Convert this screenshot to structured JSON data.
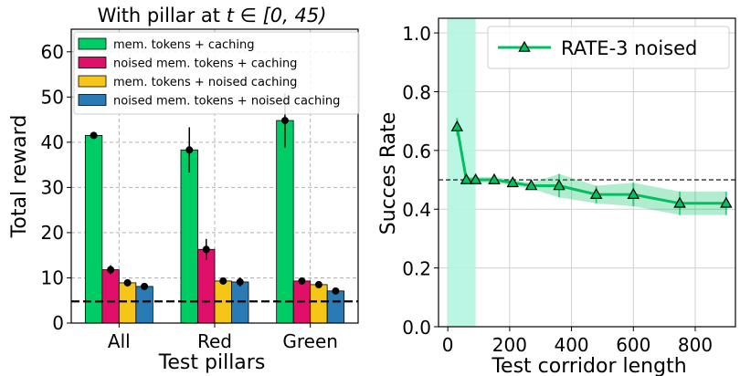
{
  "chart_data": [
    {
      "type": "bar",
      "title": "With pillar at t ∈ [0, 45)",
      "title_prefix": "With pillar at ",
      "title_math": "t ∈ [0, 45)",
      "xlabel": "Test pillars",
      "ylabel": "Total reward",
      "categories": [
        "All",
        "Red",
        "Green"
      ],
      "ylim": [
        0,
        65
      ],
      "yticks": [
        0,
        10,
        20,
        30,
        40,
        50,
        60
      ],
      "grid": true,
      "legend_position": "top-left",
      "baseline": 4.8,
      "series": [
        {
          "name": "mem. tokens + caching",
          "color": "#00cc66",
          "values": [
            41.5,
            38.3,
            44.8
          ],
          "err": [
            0.5,
            5.0,
            6.0
          ]
        },
        {
          "name": "noised mem. tokens + caching",
          "color": "#e0106a",
          "values": [
            11.8,
            16.3,
            9.3
          ],
          "err": [
            1.0,
            2.3,
            0.6
          ]
        },
        {
          "name": "mem. tokens + noised caching",
          "color": "#f5c518",
          "values": [
            8.9,
            9.3,
            8.5
          ],
          "err": [
            0.5,
            0.5,
            0.6
          ]
        },
        {
          "name": "noised mem. tokens + noised caching",
          "color": "#2a7bb5",
          "values": [
            8.1,
            9.1,
            7.1
          ],
          "err": [
            0.5,
            1.0,
            0.5
          ]
        }
      ]
    },
    {
      "type": "line",
      "xlabel": "Test corridor length",
      "ylabel": "Succes Rate",
      "xlim": [
        -30,
        930
      ],
      "ylim": [
        0.0,
        1.05
      ],
      "xticks": [
        0,
        200,
        400,
        600,
        800
      ],
      "yticks": [
        "0.0",
        "0.2",
        "0.4",
        "0.6",
        "0.8",
        "1.0"
      ],
      "grid": true,
      "legend_position": "top-right",
      "shaded_region": [
        0,
        90
      ],
      "shaded_color": "#b3f5e0",
      "baseline": 0.5,
      "series": [
        {
          "name": "RATE-3 noised",
          "color": "#00c060",
          "x": [
            30,
            60,
            90,
            150,
            210,
            270,
            360,
            480,
            600,
            750,
            900
          ],
          "y": [
            0.68,
            0.5,
            0.5,
            0.5,
            0.49,
            0.48,
            0.48,
            0.45,
            0.45,
            0.42,
            0.42
          ],
          "err": [
            0.03,
            0.01,
            0.01,
            0.01,
            0.01,
            0.01,
            0.04,
            0.03,
            0.04,
            0.04,
            0.04
          ]
        }
      ]
    }
  ]
}
